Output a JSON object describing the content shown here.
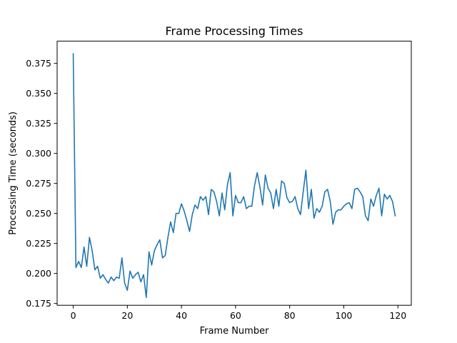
{
  "chart_data": {
    "type": "line",
    "title": "Frame Processing Times",
    "xlabel": "Frame Number",
    "ylabel": "Processing Time (seconds)",
    "xlim": [
      -5.95,
      124.95
    ],
    "ylim": [
      0.1735,
      0.3935
    ],
    "x_ticks": [
      0,
      20,
      40,
      60,
      80,
      100,
      120
    ],
    "y_ticks": [
      0.175,
      0.2,
      0.225,
      0.25,
      0.275,
      0.3,
      0.325,
      0.35,
      0.375
    ],
    "x_tick_labels": [
      "0",
      "20",
      "40",
      "60",
      "80",
      "100",
      "120"
    ],
    "y_tick_labels": [
      "0.175",
      "0.200",
      "0.225",
      "0.250",
      "0.275",
      "0.300",
      "0.325",
      "0.350",
      "0.375"
    ],
    "grid": false,
    "legend": "none",
    "colors": {
      "line": "#1f77b4",
      "axes": "#000000",
      "background": "#ffffff"
    },
    "series": [
      {
        "x_start": 0,
        "x_step": 1,
        "values": [
          0.383,
          0.205,
          0.21,
          0.205,
          0.222,
          0.206,
          0.23,
          0.219,
          0.203,
          0.206,
          0.196,
          0.199,
          0.195,
          0.192,
          0.197,
          0.194,
          0.197,
          0.196,
          0.213,
          0.192,
          0.186,
          0.202,
          0.196,
          0.199,
          0.201,
          0.193,
          0.199,
          0.18,
          0.218,
          0.207,
          0.219,
          0.224,
          0.228,
          0.213,
          0.215,
          0.23,
          0.243,
          0.234,
          0.25,
          0.25,
          0.258,
          0.252,
          0.244,
          0.235,
          0.249,
          0.257,
          0.254,
          0.264,
          0.261,
          0.264,
          0.249,
          0.27,
          0.268,
          0.26,
          0.248,
          0.267,
          0.253,
          0.274,
          0.284,
          0.248,
          0.265,
          0.259,
          0.259,
          0.264,
          0.254,
          0.256,
          0.256,
          0.273,
          0.284,
          0.272,
          0.257,
          0.282,
          0.271,
          0.267,
          0.254,
          0.27,
          0.256,
          0.277,
          0.275,
          0.263,
          0.259,
          0.26,
          0.264,
          0.254,
          0.249,
          0.268,
          0.286,
          0.254,
          0.27,
          0.246,
          0.254,
          0.251,
          0.256,
          0.268,
          0.27,
          0.26,
          0.241,
          0.251,
          0.253,
          0.253,
          0.256,
          0.258,
          0.259,
          0.254,
          0.27,
          0.271,
          0.268,
          0.264,
          0.248,
          0.244,
          0.262,
          0.256,
          0.265,
          0.271,
          0.248,
          0.266,
          0.262,
          0.265,
          0.26,
          0.248
        ]
      }
    ]
  }
}
